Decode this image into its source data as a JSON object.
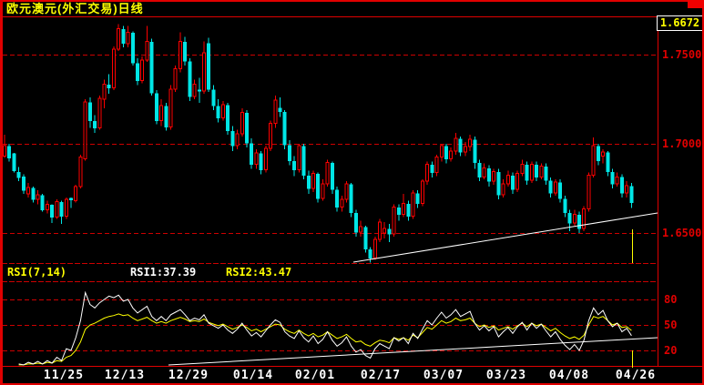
{
  "window": {
    "title": "欧元澳元(外汇交易)日线"
  },
  "colors": {
    "background": "#000000",
    "frame_red": "#e00000",
    "grid_red": "#cc0000",
    "up_candle": "#ff0000",
    "down_candle": "#00e6e6",
    "rsi1_line": "#ffffff",
    "rsi2_line": "#ffff00",
    "title_yellow": "#ffff00",
    "axis_text_white": "#ffffff",
    "last_price_yellow": "#ffff00"
  },
  "main_chart": {
    "last_price": "1.6672",
    "price_scale": [
      {
        "label": "1.7500",
        "value": 1.75
      },
      {
        "label": "1.7000",
        "value": 1.7
      },
      {
        "label": "1.6500",
        "value": 1.65
      }
    ]
  },
  "rsi_panel": {
    "param_label": "RSI(7,14)",
    "rsi1_label": "RSI1:37.39",
    "rsi2_label": "RSI2:43.47",
    "scale": [
      {
        "label": "80",
        "value": 80
      },
      {
        "label": "50",
        "value": 50
      },
      {
        "label": "20",
        "value": 20
      }
    ]
  },
  "x_axis": {
    "labels": [
      {
        "text": "11/25",
        "x": 70
      },
      {
        "text": "12/13",
        "x": 137
      },
      {
        "text": "12/29",
        "x": 207
      },
      {
        "text": "01/14",
        "x": 278
      },
      {
        "text": "02/01",
        "x": 346
      },
      {
        "text": "02/17",
        "x": 418
      },
      {
        "text": "03/07",
        "x": 487
      },
      {
        "text": "03/23",
        "x": 556
      },
      {
        "text": "04/08",
        "x": 625
      },
      {
        "text": "04/26",
        "x": 698
      }
    ]
  },
  "chart_data": {
    "type": "candlestick",
    "symbol": "EUR/AUD daily",
    "ylim": [
      1.633,
      1.771
    ],
    "grid": "dashed-red",
    "ohlc": [
      [
        1.693,
        1.705,
        1.692,
        1.699
      ],
      [
        1.6985,
        1.7,
        1.69,
        1.692
      ],
      [
        1.6945,
        1.695,
        1.684,
        1.685
      ],
      [
        1.684,
        1.687,
        1.679,
        1.681
      ],
      [
        1.6815,
        1.683,
        1.672,
        1.674
      ],
      [
        1.672,
        1.678,
        1.67,
        1.6755
      ],
      [
        1.675,
        1.676,
        1.667,
        1.669
      ],
      [
        1.669,
        1.674,
        1.666,
        1.6715
      ],
      [
        1.671,
        1.672,
        1.662,
        1.663
      ],
      [
        1.663,
        1.668,
        1.661,
        1.666
      ],
      [
        1.6655,
        1.666,
        1.6555,
        1.659
      ],
      [
        1.659,
        1.669,
        1.658,
        1.6675
      ],
      [
        1.667,
        1.668,
        1.655,
        1.6595
      ],
      [
        1.6595,
        1.67,
        1.658,
        1.669
      ],
      [
        1.6695,
        1.67,
        1.664,
        1.6685
      ],
      [
        1.668,
        1.677,
        1.667,
        1.676
      ],
      [
        1.676,
        1.694,
        1.675,
        1.6925
      ],
      [
        1.6915,
        1.725,
        1.6905,
        1.7235
      ],
      [
        1.723,
        1.726,
        1.709,
        1.713
      ],
      [
        1.7125,
        1.716,
        1.706,
        1.709
      ],
      [
        1.709,
        1.727,
        1.708,
        1.7255
      ],
      [
        1.725,
        1.736,
        1.72,
        1.7335
      ],
      [
        1.733,
        1.739,
        1.728,
        1.7315
      ],
      [
        1.7315,
        1.7545,
        1.73,
        1.753
      ],
      [
        1.753,
        1.767,
        1.752,
        1.7645
      ],
      [
        1.764,
        1.766,
        1.754,
        1.7565
      ],
      [
        1.756,
        1.766,
        1.754,
        1.7625
      ],
      [
        1.762,
        1.763,
        1.744,
        1.7455
      ],
      [
        1.745,
        1.748,
        1.733,
        1.7355
      ],
      [
        1.7355,
        1.749,
        1.734,
        1.747
      ],
      [
        1.747,
        1.766,
        1.746,
        1.7575
      ],
      [
        1.757,
        1.759,
        1.727,
        1.7285
      ],
      [
        1.728,
        1.73,
        1.711,
        1.713
      ],
      [
        1.713,
        1.725,
        1.71,
        1.7215
      ],
      [
        1.721,
        1.723,
        1.7075,
        1.7095
      ],
      [
        1.7095,
        1.733,
        1.708,
        1.7305
      ],
      [
        1.7305,
        1.744,
        1.729,
        1.742
      ],
      [
        1.742,
        1.7625,
        1.74,
        1.7575
      ],
      [
        1.757,
        1.76,
        1.744,
        1.7465
      ],
      [
        1.746,
        1.748,
        1.724,
        1.7265
      ],
      [
        1.7265,
        1.736,
        1.725,
        1.7335
      ],
      [
        1.73,
        1.737,
        1.723,
        1.7295
      ],
      [
        1.7295,
        1.7575,
        1.728,
        1.751
      ],
      [
        1.756,
        1.7595,
        1.729,
        1.7305
      ],
      [
        1.73,
        1.733,
        1.719,
        1.7215
      ],
      [
        1.721,
        1.725,
        1.712,
        1.7145
      ],
      [
        1.7145,
        1.724,
        1.713,
        1.722
      ],
      [
        1.7215,
        1.723,
        1.705,
        1.7075
      ],
      [
        1.707,
        1.71,
        1.696,
        1.699
      ],
      [
        1.699,
        1.708,
        1.697,
        1.7055
      ],
      [
        1.7055,
        1.72,
        1.704,
        1.7175
      ],
      [
        1.717,
        1.719,
        1.698,
        1.7005
      ],
      [
        1.7,
        1.703,
        1.686,
        1.6885
      ],
      [
        1.6885,
        1.697,
        1.686,
        1.695
      ],
      [
        1.6945,
        1.696,
        1.683,
        1.6855
      ],
      [
        1.6855,
        1.699,
        1.684,
        1.6975
      ],
      [
        1.6975,
        1.713,
        1.696,
        1.7115
      ],
      [
        1.7115,
        1.727,
        1.709,
        1.7245
      ],
      [
        1.72,
        1.726,
        1.715,
        1.718
      ],
      [
        1.7175,
        1.719,
        1.697,
        1.6995
      ],
      [
        1.699,
        1.702,
        1.688,
        1.6905
      ],
      [
        1.69,
        1.693,
        1.682,
        1.6855
      ],
      [
        1.6855,
        1.7,
        1.684,
        1.699
      ],
      [
        1.6985,
        1.7,
        1.68,
        1.6825
      ],
      [
        1.682,
        1.685,
        1.672,
        1.675
      ],
      [
        1.675,
        1.685,
        1.673,
        1.6835
      ],
      [
        1.683,
        1.684,
        1.667,
        1.6695
      ],
      [
        1.6695,
        1.68,
        1.668,
        1.6775
      ],
      [
        1.6775,
        1.691,
        1.676,
        1.6895
      ],
      [
        1.689,
        1.69,
        1.672,
        1.6745
      ],
      [
        1.674,
        1.676,
        1.662,
        1.6645
      ],
      [
        1.6645,
        1.671,
        1.662,
        1.669
      ],
      [
        1.669,
        1.679,
        1.667,
        1.6775
      ],
      [
        1.677,
        1.678,
        1.659,
        1.6615
      ],
      [
        1.661,
        1.663,
        1.648,
        1.6505
      ],
      [
        1.6505,
        1.657,
        1.648,
        1.6535
      ],
      [
        1.653,
        1.654,
        1.639,
        1.641
      ],
      [
        1.6405,
        1.642,
        1.6335,
        1.636
      ],
      [
        1.636,
        1.648,
        1.635,
        1.6465
      ],
      [
        1.6465,
        1.658,
        1.645,
        1.656
      ],
      [
        1.65,
        1.656,
        1.647,
        1.6525
      ],
      [
        1.652,
        1.655,
        1.645,
        1.6495
      ],
      [
        1.6495,
        1.666,
        1.648,
        1.6645
      ],
      [
        1.664,
        1.666,
        1.657,
        1.6605
      ],
      [
        1.6605,
        1.672,
        1.659,
        1.6665
      ],
      [
        1.666,
        1.668,
        1.657,
        1.6595
      ],
      [
        1.6595,
        1.674,
        1.658,
        1.6725
      ],
      [
        1.672,
        1.674,
        1.664,
        1.6665
      ],
      [
        1.6665,
        1.68,
        1.665,
        1.679
      ],
      [
        1.679,
        1.69,
        1.677,
        1.6885
      ],
      [
        1.688,
        1.69,
        1.681,
        1.684
      ],
      [
        1.684,
        1.694,
        1.682,
        1.6925
      ],
      [
        1.6925,
        1.7,
        1.69,
        1.699
      ],
      [
        1.6985,
        1.7,
        1.689,
        1.6915
      ],
      [
        1.6915,
        1.698,
        1.69,
        1.696
      ],
      [
        1.696,
        1.706,
        1.694,
        1.703
      ],
      [
        1.7025,
        1.704,
        1.693,
        1.6955
      ],
      [
        1.6955,
        1.701,
        1.693,
        1.6985
      ],
      [
        1.6985,
        1.705,
        1.696,
        1.7025
      ],
      [
        1.702,
        1.704,
        1.686,
        1.6895
      ],
      [
        1.689,
        1.691,
        1.679,
        1.6815
      ],
      [
        1.6815,
        1.689,
        1.68,
        1.6865
      ],
      [
        1.686,
        1.688,
        1.676,
        1.679
      ],
      [
        1.679,
        1.686,
        1.677,
        1.6845
      ],
      [
        1.684,
        1.686,
        1.669,
        1.6715
      ],
      [
        1.6715,
        1.68,
        1.67,
        1.6775
      ],
      [
        1.6775,
        1.685,
        1.676,
        1.6825
      ],
      [
        1.682,
        1.684,
        1.672,
        1.6745
      ],
      [
        1.6745,
        1.685,
        1.673,
        1.6835
      ],
      [
        1.6835,
        1.691,
        1.682,
        1.6885
      ],
      [
        1.688,
        1.69,
        1.677,
        1.6795
      ],
      [
        1.6795,
        1.69,
        1.678,
        1.6885
      ],
      [
        1.688,
        1.69,
        1.679,
        1.6815
      ],
      [
        1.6815,
        1.689,
        1.68,
        1.6875
      ],
      [
        1.687,
        1.689,
        1.677,
        1.6795
      ],
      [
        1.679,
        1.681,
        1.67,
        1.6725
      ],
      [
        1.6725,
        1.68,
        1.671,
        1.6785
      ],
      [
        1.678,
        1.68,
        1.667,
        1.6695
      ],
      [
        1.669,
        1.671,
        1.659,
        1.6615
      ],
      [
        1.661,
        1.663,
        1.651,
        1.6555
      ],
      [
        1.6555,
        1.663,
        1.654,
        1.6605
      ],
      [
        1.66,
        1.662,
        1.65,
        1.6525
      ],
      [
        1.6525,
        1.665,
        1.651,
        1.6635
      ],
      [
        1.6635,
        1.684,
        1.662,
        1.6825
      ],
      [
        1.6825,
        1.7035,
        1.681,
        1.699
      ],
      [
        1.6985,
        1.7,
        1.688,
        1.6905
      ],
      [
        1.693,
        1.697,
        1.689,
        1.6955
      ],
      [
        1.695,
        1.696,
        1.682,
        1.6845
      ],
      [
        1.684,
        1.686,
        1.675,
        1.6775
      ],
      [
        1.6775,
        1.684,
        1.676,
        1.6815
      ],
      [
        1.681,
        1.683,
        1.67,
        1.6725
      ],
      [
        1.6725,
        1.679,
        1.67,
        1.6765
      ],
      [
        1.676,
        1.678,
        1.664,
        1.6672
      ]
    ],
    "rsi": {
      "ylim": [
        0,
        100
      ],
      "rsi1_values": [
        null,
        null,
        null,
        4,
        3,
        6,
        4,
        7,
        4,
        8,
        5,
        12,
        8,
        22,
        20,
        35,
        55,
        88,
        74,
        70,
        76,
        80,
        84,
        82,
        85,
        78,
        80,
        70,
        64,
        68,
        72,
        60,
        55,
        60,
        55,
        62,
        65,
        68,
        62,
        55,
        58,
        56,
        62,
        52,
        49,
        46,
        50,
        44,
        40,
        45,
        52,
        44,
        37,
        41,
        36,
        43,
        50,
        56,
        53,
        42,
        37,
        34,
        43,
        35,
        30,
        37,
        28,
        33,
        42,
        32,
        25,
        29,
        36,
        25,
        18,
        21,
        14,
        11,
        22,
        28,
        25,
        22,
        35,
        31,
        35,
        28,
        40,
        34,
        45,
        55,
        50,
        58,
        65,
        58,
        62,
        68,
        60,
        63,
        66,
        52,
        44,
        49,
        43,
        48,
        36,
        42,
        47,
        40,
        48,
        53,
        44,
        52,
        46,
        51,
        43,
        36,
        42,
        33,
        26,
        21,
        27,
        20,
        32,
        55,
        70,
        62,
        67,
        55,
        48,
        52,
        42,
        46,
        37.39
      ],
      "rsi2_values": [
        null,
        null,
        null,
        3,
        3,
        4,
        4,
        5,
        4,
        6,
        5,
        8,
        7,
        12,
        14,
        20,
        30,
        45,
        50,
        52,
        55,
        58,
        60,
        61,
        63,
        61,
        62,
        58,
        55,
        57,
        59,
        55,
        52,
        54,
        52,
        55,
        57,
        59,
        57,
        54,
        55,
        54,
        57,
        53,
        51,
        49,
        51,
        48,
        45,
        47,
        50,
        47,
        43,
        45,
        42,
        45,
        48,
        51,
        50,
        45,
        42,
        40,
        44,
        40,
        37,
        40,
        36,
        38,
        42,
        38,
        34,
        36,
        39,
        34,
        30,
        31,
        27,
        25,
        29,
        32,
        31,
        29,
        35,
        33,
        35,
        32,
        38,
        35,
        41,
        47,
        45,
        50,
        55,
        52,
        54,
        58,
        55,
        56,
        58,
        52,
        48,
        50,
        47,
        49,
        44,
        46,
        48,
        45,
        49,
        52,
        48,
        52,
        49,
        51,
        47,
        43,
        46,
        41,
        37,
        34,
        36,
        33,
        38,
        50,
        60,
        58,
        60,
        55,
        50,
        52,
        47,
        48,
        43.47
      ]
    },
    "annotations": {
      "main_trendline": {
        "x1": 388,
        "y1": 288,
        "x2": 722,
        "y2": 234
      },
      "rsi_trendline": {
        "x1": 185,
        "y1": 401,
        "x2": 722,
        "y2": 371
      },
      "cursor": {
        "x": 694,
        "segments": [
          [
            252,
            289
          ],
          [
            385,
            404
          ]
        ]
      }
    }
  }
}
